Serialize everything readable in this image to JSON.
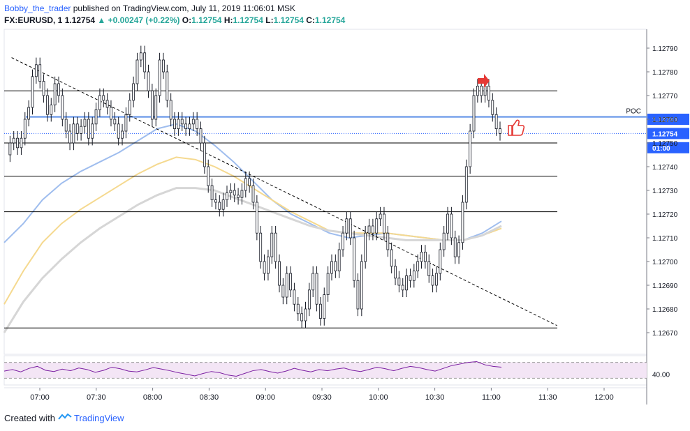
{
  "header": {
    "author": "Bobby_the_trader",
    "published_text": "published on TradingView.com, July 11, 2019 11:06:01 MSK",
    "symbol": "FX:EURUSD, 1",
    "last": "1.12754",
    "change": "+0.00247 (+0.22%)",
    "o_label": "O:",
    "o_value": "1.12754",
    "h_label": "H:",
    "h_value": "1.12754",
    "l_label": "L:",
    "l_value": "1.12754",
    "c_label": "C:",
    "c_value": "1.12754"
  },
  "footer": {
    "created_with": "Created with",
    "brand": "TradingView"
  },
  "chart_data": {
    "type": "candlestick",
    "symbol": "FX:EURUSD",
    "interval": "1",
    "y_range": [
      1.12663,
      1.12797
    ],
    "y_ticks": [
      "1.12790",
      "1.12780",
      "1.12770",
      "1.12760",
      "1.12750",
      "1.12740",
      "1.12730",
      "1.12720",
      "1.12710",
      "1.12700",
      "1.12690",
      "1.12680",
      "1.12670"
    ],
    "x_ticks": [
      "07:00",
      "07:30",
      "08:00",
      "08:30",
      "09:00",
      "09:30",
      "10:00",
      "10:30",
      "11:00",
      "11:30",
      "12:00"
    ],
    "price_labels": [
      {
        "text": "1.12760",
        "value": 1.1276,
        "color": "#2962ff"
      },
      {
        "text": "1.12754",
        "value": 1.12754,
        "color": "#2962ff"
      },
      {
        "text": "01:00",
        "value": 1.12748,
        "color": "#2962ff"
      }
    ],
    "poc_label": "POC",
    "poc_value": 1.12761,
    "last_price": 1.12754,
    "horizontal_levels": [
      1.12772,
      1.1275,
      1.12736,
      1.12721,
      1.12672
    ],
    "trendline": {
      "from": {
        "time": "06:45",
        "price": 1.12786
      },
      "to": {
        "time": "11:35",
        "price": 1.12673
      }
    },
    "candles_path": [
      1.12745,
      1.1275,
      1.12752,
      1.12748,
      1.12752,
      1.1276,
      1.12765,
      1.12778,
      1.12783,
      1.12776,
      1.1277,
      1.12762,
      1.12766,
      1.12775,
      1.1277,
      1.1276,
      1.12755,
      1.1275,
      1.12758,
      1.12754,
      1.12757,
      1.1276,
      1.12752,
      1.12758,
      1.12764,
      1.1277,
      1.12768,
      1.12765,
      1.1276,
      1.12758,
      1.12752,
      1.12755,
      1.12762,
      1.12768,
      1.12775,
      1.12785,
      1.12788,
      1.1278,
      1.12772,
      1.1276,
      1.1277,
      1.12785,
      1.1278,
      1.12768,
      1.1276,
      1.12756,
      1.1276,
      1.12758,
      1.12756,
      1.12758,
      1.1276,
      1.12756,
      1.1275,
      1.1274,
      1.12732,
      1.12726,
      1.12725,
      1.12722,
      1.12726,
      1.12729,
      1.1273,
      1.12728,
      1.12727,
      1.1273,
      1.12735,
      1.12732,
      1.12725,
      1.12712,
      1.127,
      1.12695,
      1.12702,
      1.12712,
      1.127,
      1.1269,
      1.12685,
      1.12695,
      1.12688,
      1.12682,
      1.12678,
      1.12675,
      1.1268,
      1.12688,
      1.12695,
      1.12682,
      1.12676,
      1.12686,
      1.12695,
      1.127,
      1.12696,
      1.12705,
      1.12712,
      1.12718,
      1.1271,
      1.12692,
      1.1268,
      1.127,
      1.12712,
      1.12715,
      1.12712,
      1.12718,
      1.1272,
      1.12712,
      1.12705,
      1.12698,
      1.12693,
      1.1269,
      1.12688,
      1.12694,
      1.12692,
      1.12696,
      1.127,
      1.12704,
      1.127,
      1.12694,
      1.1269,
      1.12695,
      1.12705,
      1.12712,
      1.1272,
      1.1271,
      1.12702,
      1.12708,
      1.12725,
      1.1274,
      1.12755,
      1.1277,
      1.12774,
      1.1277,
      1.12774,
      1.12768,
      1.12762,
      1.12756,
      1.12754
    ],
    "moving_averages": [
      {
        "color": "#9fbdee",
        "values": [
          1.12708,
          1.12716,
          1.12726,
          1.12733,
          1.12738,
          1.12742,
          1.12746,
          1.12751,
          1.12756,
          1.12758,
          1.12755,
          1.12749,
          1.12742,
          1.12734,
          1.12726,
          1.1272,
          1.12716,
          1.12712,
          1.1271,
          1.12711,
          1.12712,
          1.12711,
          1.1271,
          1.12709,
          1.12709,
          1.12712,
          1.12717
        ]
      },
      {
        "color": "#f5d98f",
        "values": [
          1.12682,
          1.12696,
          1.12708,
          1.12716,
          1.12722,
          1.12727,
          1.12732,
          1.12737,
          1.12741,
          1.12744,
          1.12743,
          1.1274,
          1.12736,
          1.12731,
          1.12726,
          1.12721,
          1.12717,
          1.12713,
          1.12712,
          1.12712,
          1.12712,
          1.12711,
          1.1271,
          1.12709,
          1.12709,
          1.12711,
          1.12714
        ]
      },
      {
        "color": "#d6d6d6",
        "values": [
          1.1267,
          1.12683,
          1.12693,
          1.12701,
          1.12708,
          1.12714,
          1.12719,
          1.12724,
          1.12728,
          1.12731,
          1.12731,
          1.1273,
          1.12727,
          1.12724,
          1.12721,
          1.12718,
          1.12715,
          1.12713,
          1.12712,
          1.12711,
          1.1271,
          1.12709,
          1.12709,
          1.12709,
          1.12709,
          1.12711,
          1.12715
        ]
      }
    ],
    "rsi": {
      "label": "40.00",
      "upper": 70,
      "lower": 30,
      "values": [
        48,
        52,
        46,
        55,
        60,
        50,
        47,
        53,
        49,
        56,
        52,
        45,
        50,
        58,
        54,
        48,
        46,
        51,
        57,
        53,
        49,
        44,
        40,
        36,
        42,
        47,
        44,
        38,
        35,
        42,
        49,
        52,
        47,
        43,
        48,
        55,
        50,
        46,
        52,
        49,
        53,
        56,
        50,
        47,
        52,
        58,
        54,
        49,
        55,
        60,
        57,
        52,
        48,
        55,
        62,
        66,
        70,
        72,
        64,
        60,
        58
      ]
    }
  }
}
